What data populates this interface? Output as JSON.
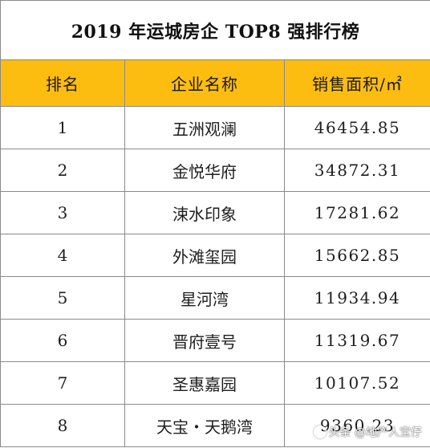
{
  "table": {
    "title": "2019 年运城房企 TOP8 强排行榜",
    "headers": {
      "rank": "排名",
      "company": "企业名称",
      "sales_area": "销售面积/㎡"
    },
    "rows": [
      {
        "rank": "1",
        "company": "五洲观澜",
        "sales_area": "46454.85"
      },
      {
        "rank": "2",
        "company": "金悦华府",
        "sales_area": "34872.31"
      },
      {
        "rank": "3",
        "company": "涑水印象",
        "sales_area": "17281.62"
      },
      {
        "rank": "4",
        "company": "外滩玺园",
        "sales_area": "15662.85"
      },
      {
        "rank": "5",
        "company": "星河湾",
        "sales_area": "11934.94"
      },
      {
        "rank": "6",
        "company": "晋府壹号",
        "sales_area": "11319.67"
      },
      {
        "rank": "7",
        "company": "圣惠嘉园",
        "sales_area": "10107.52"
      },
      {
        "rank": "8",
        "company": "天宝・天鹅湾",
        "sales_area": "9360.23"
      }
    ]
  },
  "watermark": {
    "text": "头条 @地产人宝仔",
    "icon": "toutiao-icon"
  },
  "colors": {
    "header_background": "#fdbd10",
    "border": "#8a8a8a"
  }
}
